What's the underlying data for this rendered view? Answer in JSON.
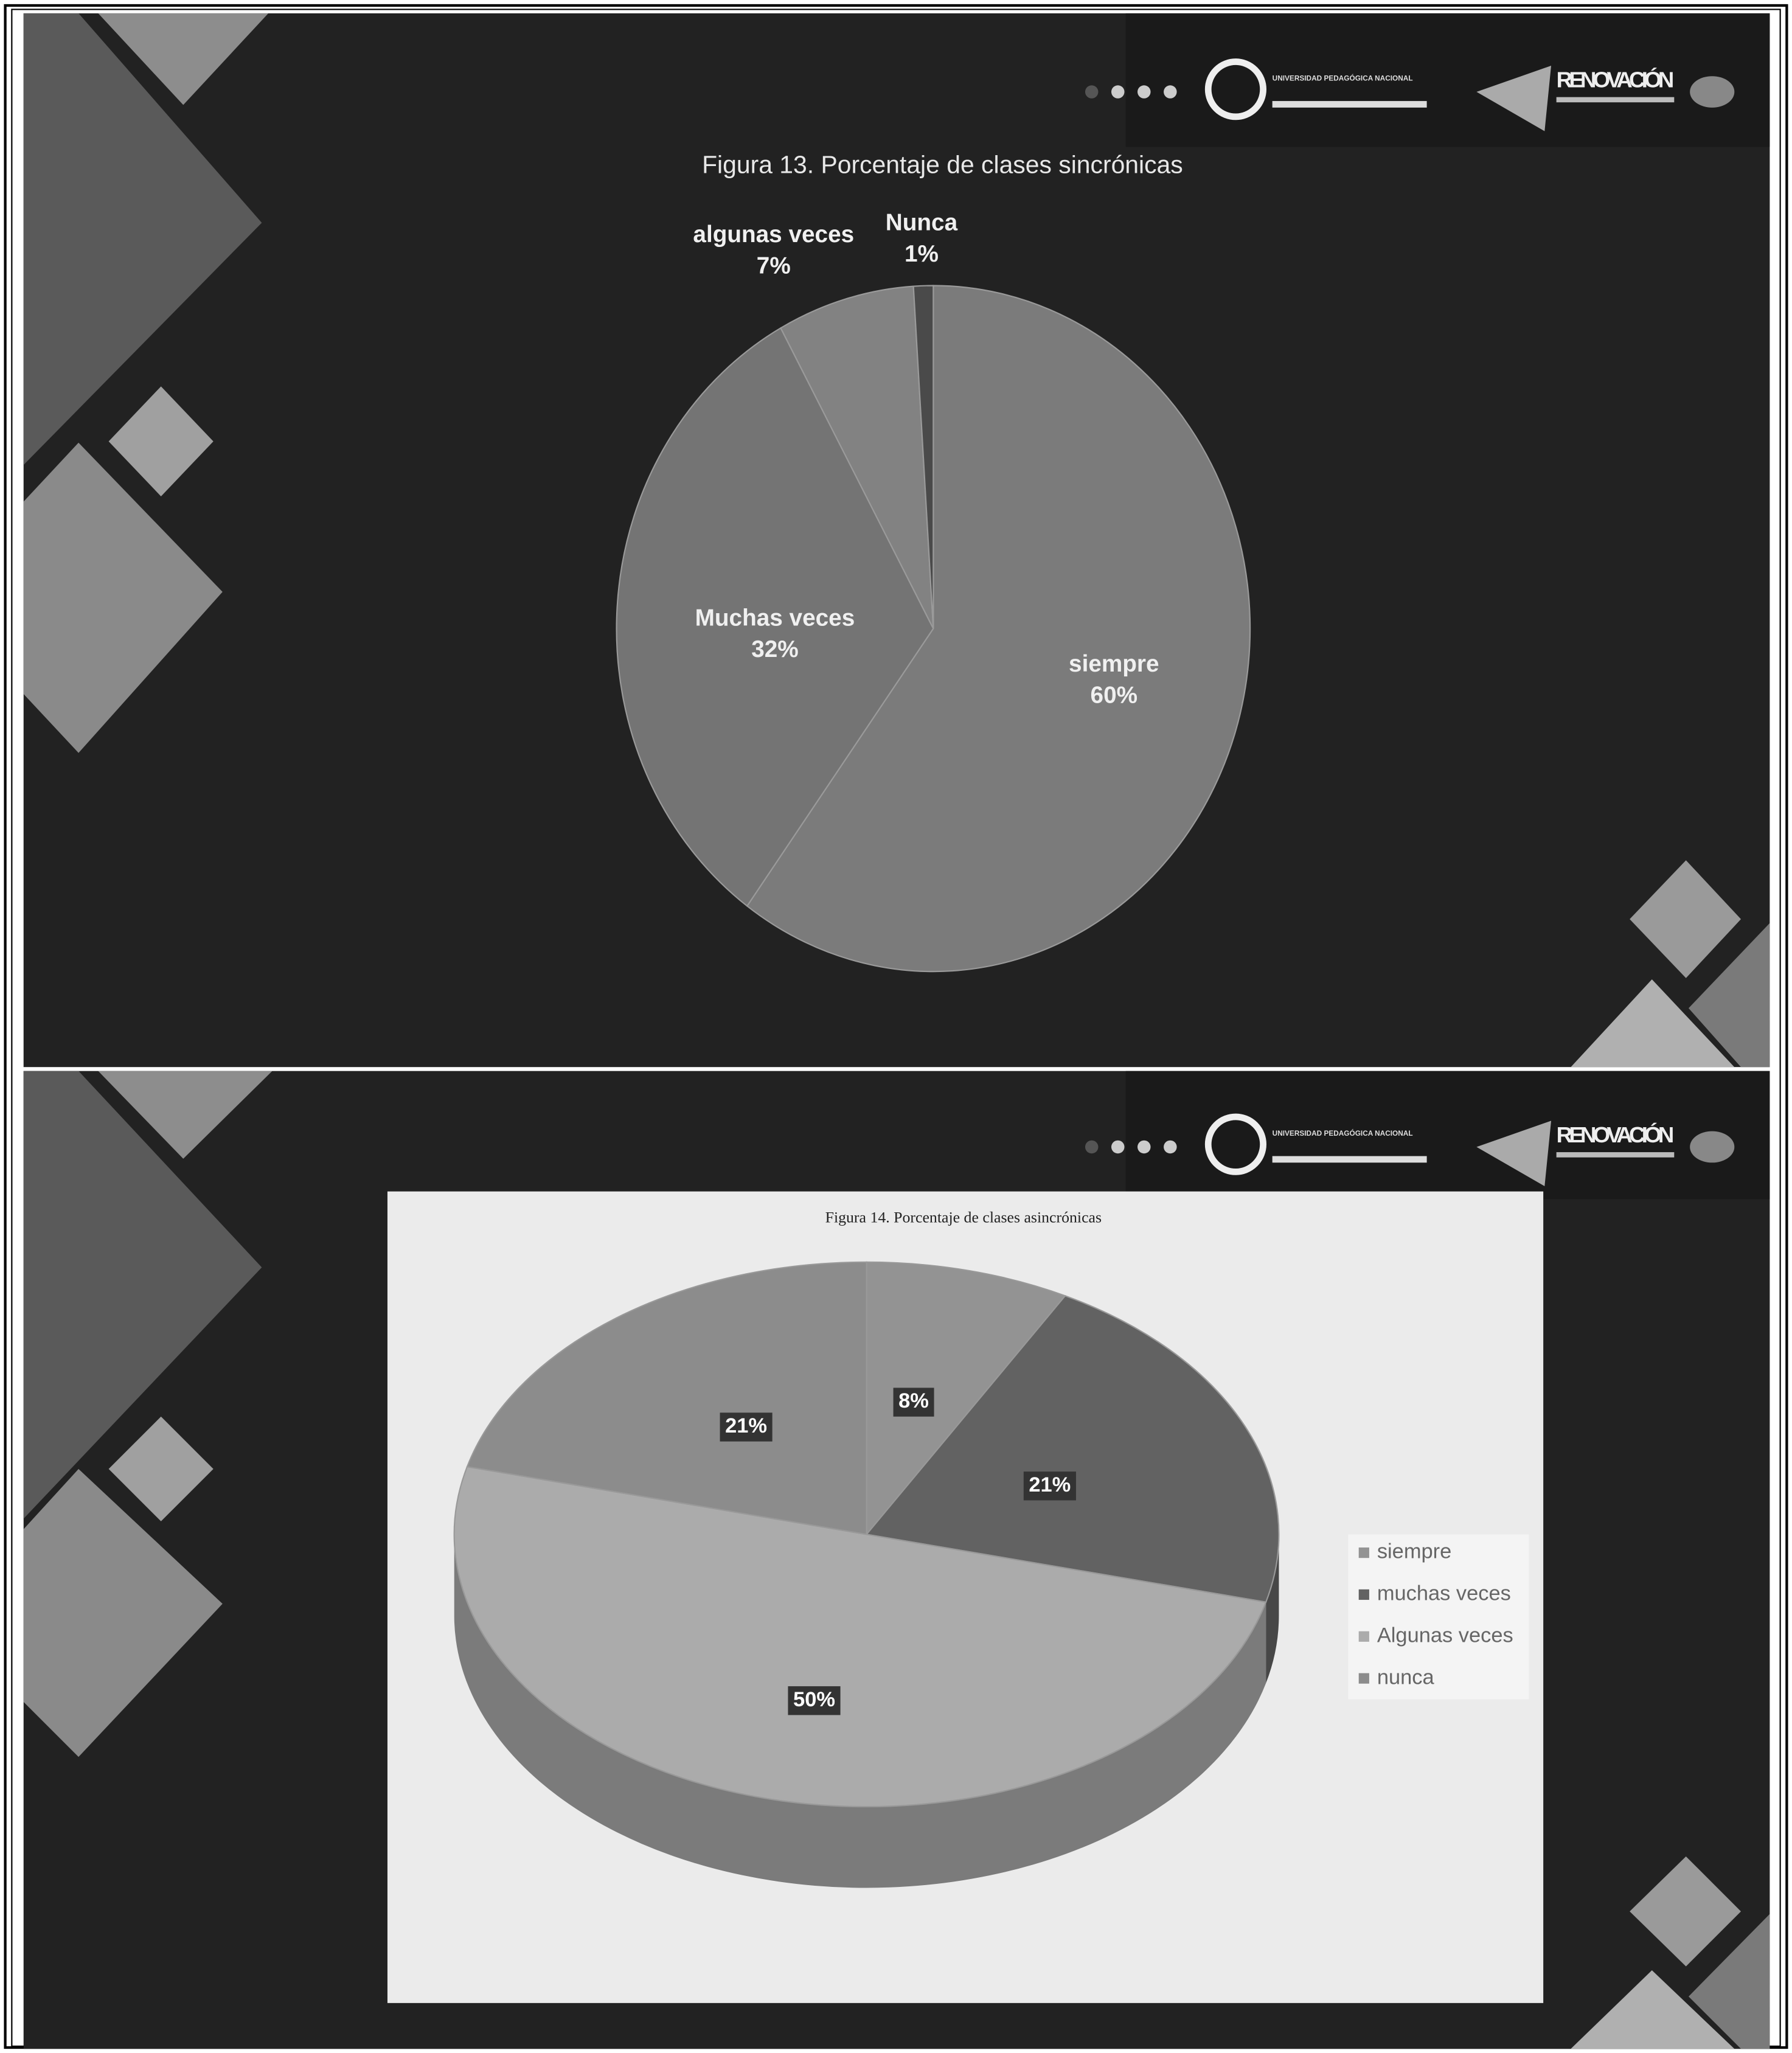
{
  "chart_data": [
    {
      "type": "pie",
      "title": "Figura 13. Porcentaje de clases sincrónicas",
      "categories": [
        "siempre",
        "Muchas veces",
        "algunas veces",
        "Nunca"
      ],
      "values": [
        60,
        32,
        7,
        1
      ],
      "value_labels": [
        "60%",
        "32%",
        "7%",
        "1%"
      ],
      "colors": [
        "#7b7b7b",
        "#747474",
        "#828282",
        "#4a4a4a"
      ]
    },
    {
      "type": "pie",
      "three_d": true,
      "title": "Figura 14. Porcentaje de clases asincrónicas",
      "categories": [
        "siempre",
        "muchas veces",
        "Algunas veces",
        "nunca"
      ],
      "values": [
        8,
        21,
        50,
        21
      ],
      "value_labels": [
        "8%",
        "21%",
        "50%",
        "21%"
      ],
      "colors": [
        "#939393",
        "#626262",
        "#ababab",
        "#8c8c8c"
      ],
      "legend": "right"
    }
  ],
  "logos": {
    "university": "UNIVERSIDAD PEDAGÓGICA NACIONAL",
    "renovacion": "RENOVACIÓN"
  }
}
